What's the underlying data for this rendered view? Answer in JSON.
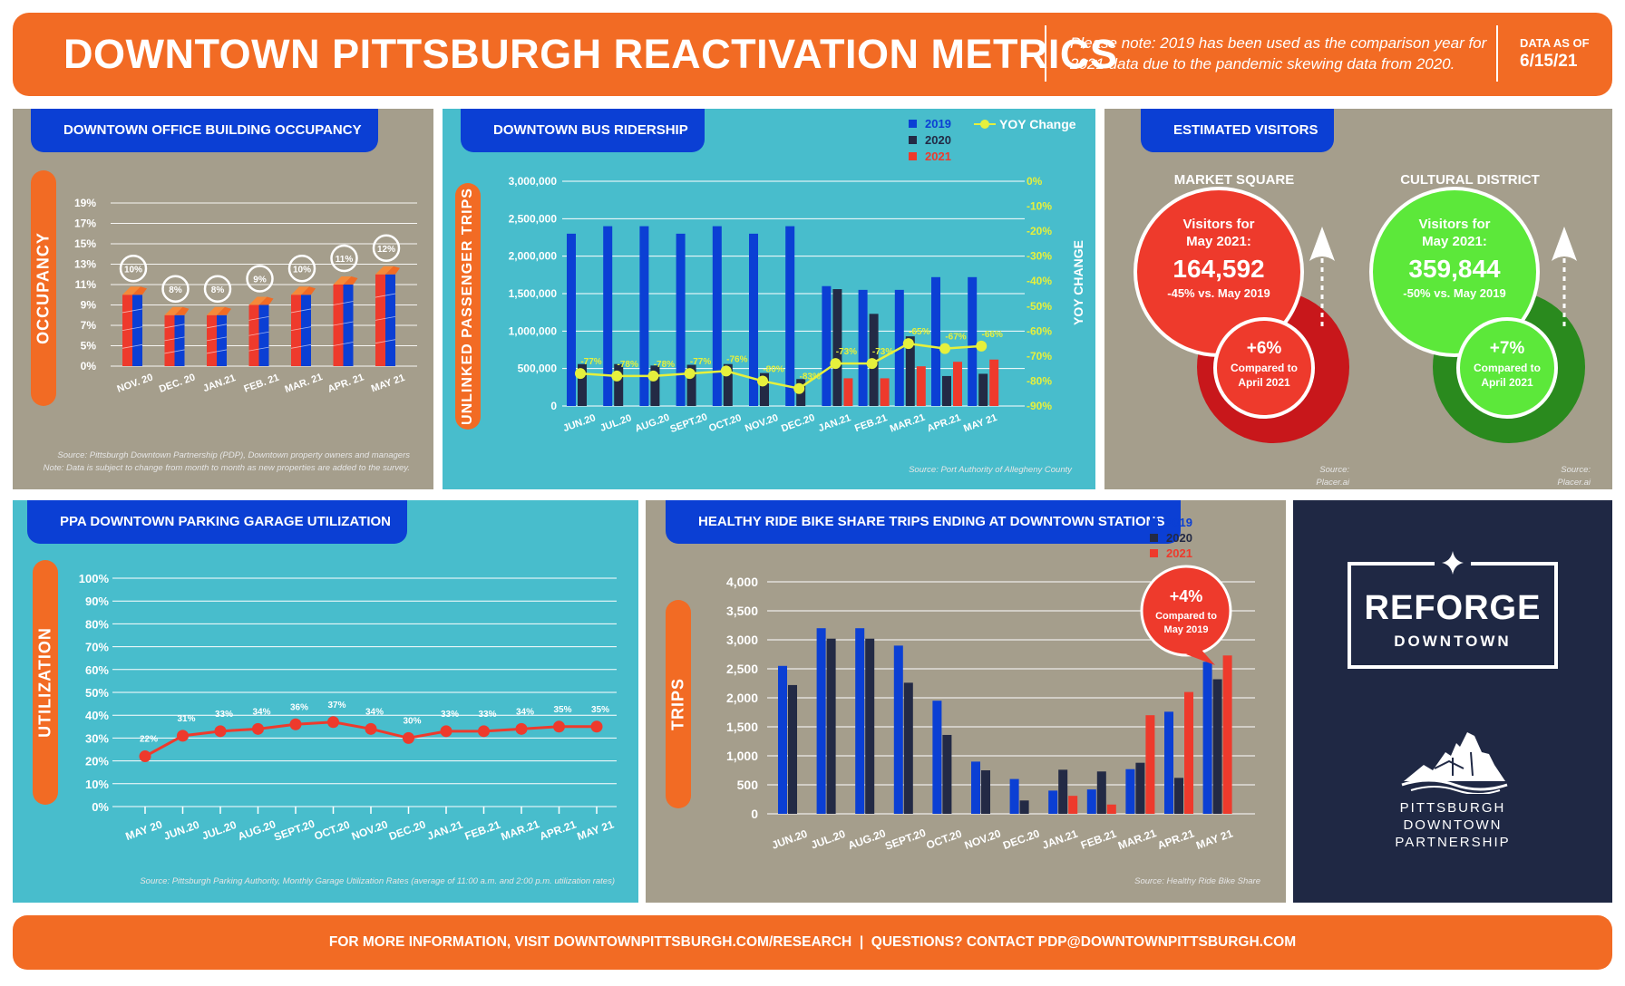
{
  "header": {
    "title": "DOWNTOWN PITTSBURGH REACTIVATION METRICS",
    "note": "Please note: 2019 has been used as the comparison year for 2021 data due to the pandemic skewing data from 2020.",
    "asof_label": "DATA AS OF",
    "asof_date": "6/15/21"
  },
  "colors": {
    "orange": "#f26b24",
    "blue_2019": "#0b3fd4",
    "dark_2020": "#232a45",
    "red_2021": "#ee3a2c",
    "yoy_yellow": "#e6f03c",
    "teal": "#48bdcc",
    "taupe": "#a59e8c",
    "navy": "#1f2844"
  },
  "office": {
    "title": "DOWNTOWN OFFICE BUILDING OCCUPANCY",
    "side_label": "OCCUPANCY",
    "source": "Source: Pittsburgh Downtown Partnership (PDP), Downtown property owners and managers",
    "note": "Note: Data is subject to change from month to month as new properties are added to the survey."
  },
  "bus": {
    "title": "DOWNTOWN BUS RIDERSHIP",
    "side_label": "UNLINKED PASSENGER TRIPS",
    "right_label": "YOY CHANGE",
    "source": "Source: Port Authority of Allegheny County",
    "legend": [
      "2019",
      "2020",
      "2021"
    ],
    "legend_yoy": "YOY Change"
  },
  "visitors": {
    "title": "ESTIMATED VISITORS",
    "market": {
      "name": "MARKET SQUARE",
      "line1": "Visitors for",
      "line2": "May 2021:",
      "value": "164,592",
      "vs": "-45% vs. May 2019",
      "change": "+6%",
      "compare1": "Compared to",
      "compare2": "April 2021",
      "source": "Source: Placer.ai"
    },
    "cultural": {
      "name": "CULTURAL DISTRICT",
      "line1": "Visitors for",
      "line2": "May 2021:",
      "value": "359,844",
      "vs": "-50% vs. May 2019",
      "change": "+7%",
      "compare1": "Compared to",
      "compare2": "April 2021",
      "source": "Source: Placer.ai"
    }
  },
  "parking": {
    "title": "PPA DOWNTOWN PARKING GARAGE UTILIZATION",
    "side_label": "UTILIZATION",
    "source": "Source: Pittsburgh Parking Authority, Monthly Garage Utilization Rates (average of 11:00 a.m. and 2:00 p.m. utilization rates)"
  },
  "bike": {
    "title": "HEALTHY RIDE BIKE SHARE TRIPS ENDING AT DOWNTOWN STATIONS",
    "side_label": "TRIPS",
    "source": "Source: Healthy Ride Bike Share",
    "legend": [
      "2019",
      "2020",
      "2021"
    ],
    "bubble_value": "+4%",
    "bubble_line1": "Compared to",
    "bubble_line2": "May 2019"
  },
  "brand": {
    "reforge1": "REFORGE",
    "reforge2": "DOWNTOWN",
    "pdp1": "PITTSBURGH",
    "pdp2": "DOWNTOWN",
    "pdp3": "PARTNERSHIP"
  },
  "footer": {
    "text": "FOR MORE INFORMATION, VISIT DOWNTOWNPITTSBURGH.COM/RESEARCH  |  QUESTIONS? CONTACT PDP@DOWNTOWNPITTSBURGH.COM"
  },
  "chart_data": [
    {
      "id": "office",
      "type": "bar",
      "title": "DOWNTOWN OFFICE BUILDING OCCUPANCY",
      "ylabel": "OCCUPANCY",
      "categories": [
        "NOV. 20",
        "DEC. 20",
        "JAN.21",
        "FEB. 21",
        "MAR. 21",
        "APR. 21",
        "MAY 21"
      ],
      "values": [
        10,
        8,
        8,
        9,
        10,
        11,
        12
      ],
      "data_labels": [
        "10%",
        "8%",
        "8%",
        "9%",
        "10%",
        "11%",
        "12%"
      ],
      "yticks": [
        "0%",
        "5%",
        "7%",
        "9%",
        "11%",
        "13%",
        "15%",
        "17%",
        "19%"
      ],
      "ylim": [
        0,
        19
      ],
      "grid": true
    },
    {
      "id": "bus",
      "type": "bar",
      "title": "DOWNTOWN BUS RIDERSHIP",
      "ylabel": "UNLINKED PASSENGER TRIPS",
      "y2label": "YOY CHANGE",
      "categories": [
        "JUN.20",
        "JUL.20",
        "AUG.20",
        "SEPT.20",
        "OCT.20",
        "NOV.20",
        "DEC.20",
        "JAN.21",
        "FEB.21",
        "MAR.21",
        "APR.21",
        "MAY 21"
      ],
      "series": [
        {
          "name": "2019",
          "values": [
            2300000,
            2400000,
            2400000,
            2300000,
            2400000,
            2300000,
            2400000,
            1600000,
            1550000,
            1550000,
            1720000,
            1720000
          ]
        },
        {
          "name": "2020",
          "values": [
            560000,
            560000,
            540000,
            550000,
            560000,
            440000,
            360000,
            1560000,
            1230000,
            930000,
            400000,
            430000
          ]
        },
        {
          "name": "2021",
          "values": [
            null,
            null,
            null,
            null,
            null,
            null,
            null,
            370000,
            370000,
            530000,
            590000,
            620000
          ]
        },
        {
          "name": "YOY Change",
          "values": [
            -77,
            -78,
            -78,
            -77,
            -76,
            -80,
            -83,
            -73,
            -73,
            -65,
            -67,
            -66
          ]
        }
      ],
      "yoy_labels": [
        "-77%",
        "-78%",
        "-78%",
        "-77%",
        "-76%",
        "-80%",
        "-83%",
        "-73%",
        "-73%",
        "-65%",
        "-67%",
        "-66%"
      ],
      "yticks": [
        "0",
        "500,000",
        "1,000,000",
        "1,500,000",
        "2,000,000",
        "2,500,000",
        "3,000,000"
      ],
      "y2ticks": [
        "0%",
        "-10%",
        "-20%",
        "-30%",
        "-40%",
        "-50%",
        "-60%",
        "-70%",
        "-80%",
        "-90%"
      ],
      "ylim": [
        0,
        3000000
      ],
      "y2lim": [
        -90,
        0
      ],
      "legend": "top-right"
    },
    {
      "id": "parking",
      "type": "line",
      "title": "PPA DOWNTOWN PARKING GARAGE UTILIZATION",
      "ylabel": "UTILIZATION",
      "categories": [
        "MAY 20",
        "JUN.20",
        "JUL.20",
        "AUG.20",
        "SEPT.20",
        "OCT.20",
        "NOV.20",
        "DEC.20",
        "JAN.21",
        "FEB.21",
        "MAR.21",
        "APR.21",
        "MAY 21"
      ],
      "values": [
        22,
        31,
        33,
        34,
        36,
        37,
        34,
        30,
        33,
        33,
        34,
        35,
        35
      ],
      "data_labels": [
        "22%",
        "31%",
        "33%",
        "34%",
        "36%",
        "37%",
        "34%",
        "30%",
        "33%",
        "33%",
        "34%",
        "35%",
        "35%"
      ],
      "yticks": [
        "0%",
        "10%",
        "20%",
        "30%",
        "40%",
        "50%",
        "60%",
        "70%",
        "80%",
        "90%",
        "100%"
      ],
      "ylim": [
        0,
        100
      ]
    },
    {
      "id": "bike",
      "type": "bar",
      "title": "HEALTHY RIDE BIKE SHARE TRIPS ENDING AT DOWNTOWN STATIONS",
      "ylabel": "TRIPS",
      "categories": [
        "JUN.20",
        "JUL.20",
        "AUG.20",
        "SEPT.20",
        "OCT.20",
        "NOV.20",
        "DEC.20",
        "JAN.21",
        "FEB.21",
        "MAR.21",
        "APR.21",
        "MAY 21"
      ],
      "series": [
        {
          "name": "2019",
          "values": [
            2550,
            3200,
            3200,
            2900,
            1950,
            900,
            600,
            400,
            420,
            770,
            1760,
            2620
          ]
        },
        {
          "name": "2020",
          "values": [
            2220,
            3020,
            3020,
            2260,
            1360,
            750,
            230,
            760,
            730,
            880,
            620,
            2320
          ]
        },
        {
          "name": "2021",
          "values": [
            null,
            null,
            null,
            null,
            null,
            null,
            null,
            310,
            160,
            1700,
            2100,
            2730
          ]
        }
      ],
      "yticks": [
        "0",
        "500",
        "1,000",
        "1,500",
        "2,000",
        "2,500",
        "3,000",
        "3,500",
        "4,000"
      ],
      "ylim": [
        0,
        4000
      ],
      "legend": "top-right"
    }
  ]
}
